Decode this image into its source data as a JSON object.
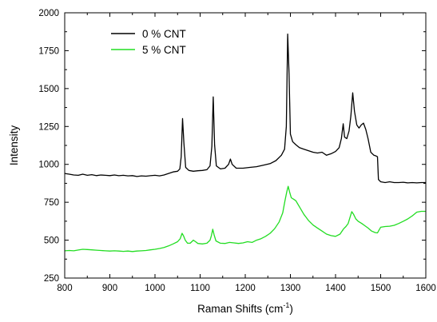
{
  "chart_data": {
    "type": "line",
    "title": "",
    "xlabel": "Raman Shifts (cm",
    "xlabel_sup": "-1",
    "xlabel_tail": ")",
    "ylabel": "Intensity",
    "xlim": [
      800,
      1600
    ],
    "ylim": [
      250,
      2000
    ],
    "x_ticks": [
      800,
      900,
      1000,
      1100,
      1200,
      1300,
      1400,
      1500,
      1600
    ],
    "y_ticks": [
      250,
      500,
      750,
      1000,
      1250,
      1500,
      1750,
      2000
    ],
    "legend_position": "top-left",
    "grid": false,
    "series": [
      {
        "name": "0 % CNT",
        "color": "#000000",
        "points": [
          [
            800,
            940
          ],
          [
            810,
            935
          ],
          [
            820,
            930
          ],
          [
            830,
            928
          ],
          [
            840,
            935
          ],
          [
            850,
            928
          ],
          [
            860,
            932
          ],
          [
            870,
            926
          ],
          [
            880,
            930
          ],
          [
            890,
            928
          ],
          [
            900,
            926
          ],
          [
            910,
            930
          ],
          [
            920,
            925
          ],
          [
            930,
            928
          ],
          [
            940,
            924
          ],
          [
            950,
            926
          ],
          [
            960,
            920
          ],
          [
            970,
            924
          ],
          [
            980,
            922
          ],
          [
            990,
            925
          ],
          [
            1000,
            928
          ],
          [
            1010,
            924
          ],
          [
            1020,
            930
          ],
          [
            1030,
            940
          ],
          [
            1040,
            950
          ],
          [
            1050,
            955
          ],
          [
            1055,
            970
          ],
          [
            1058,
            1050
          ],
          [
            1061,
            1302
          ],
          [
            1064,
            1140
          ],
          [
            1068,
            980
          ],
          [
            1075,
            960
          ],
          [
            1085,
            955
          ],
          [
            1095,
            958
          ],
          [
            1105,
            960
          ],
          [
            1115,
            965
          ],
          [
            1122,
            990
          ],
          [
            1126,
            1120
          ],
          [
            1129,
            1445
          ],
          [
            1132,
            1130
          ],
          [
            1136,
            990
          ],
          [
            1145,
            970
          ],
          [
            1155,
            975
          ],
          [
            1163,
            1000
          ],
          [
            1167,
            1035
          ],
          [
            1171,
            1000
          ],
          [
            1180,
            975
          ],
          [
            1195,
            975
          ],
          [
            1210,
            980
          ],
          [
            1225,
            985
          ],
          [
            1240,
            995
          ],
          [
            1255,
            1005
          ],
          [
            1268,
            1025
          ],
          [
            1280,
            1060
          ],
          [
            1287,
            1100
          ],
          [
            1291,
            1250
          ],
          [
            1294,
            1860
          ],
          [
            1297,
            1600
          ],
          [
            1300,
            1200
          ],
          [
            1305,
            1150
          ],
          [
            1312,
            1130
          ],
          [
            1320,
            1110
          ],
          [
            1330,
            1100
          ],
          [
            1340,
            1090
          ],
          [
            1350,
            1080
          ],
          [
            1360,
            1075
          ],
          [
            1370,
            1080
          ],
          [
            1380,
            1060
          ],
          [
            1390,
            1070
          ],
          [
            1400,
            1085
          ],
          [
            1408,
            1110
          ],
          [
            1413,
            1170
          ],
          [
            1417,
            1268
          ],
          [
            1420,
            1180
          ],
          [
            1425,
            1170
          ],
          [
            1430,
            1220
          ],
          [
            1434,
            1320
          ],
          [
            1438,
            1472
          ],
          [
            1442,
            1350
          ],
          [
            1447,
            1260
          ],
          [
            1452,
            1240
          ],
          [
            1457,
            1260
          ],
          [
            1462,
            1272
          ],
          [
            1467,
            1230
          ],
          [
            1472,
            1170
          ],
          [
            1478,
            1080
          ],
          [
            1485,
            1060
          ],
          [
            1490,
            1055
          ],
          [
            1493,
            1050
          ],
          [
            1495,
            900
          ],
          [
            1500,
            885
          ],
          [
            1510,
            880
          ],
          [
            1520,
            885
          ],
          [
            1530,
            880
          ],
          [
            1540,
            880
          ],
          [
            1550,
            882
          ],
          [
            1560,
            878
          ],
          [
            1570,
            880
          ],
          [
            1580,
            878
          ],
          [
            1590,
            880
          ],
          [
            1600,
            880
          ]
        ]
      },
      {
        "name": "5 % CNT",
        "color": "#22dd22",
        "points": [
          [
            800,
            430
          ],
          [
            810,
            432
          ],
          [
            820,
            430
          ],
          [
            830,
            435
          ],
          [
            840,
            440
          ],
          [
            850,
            438
          ],
          [
            860,
            436
          ],
          [
            870,
            434
          ],
          [
            880,
            432
          ],
          [
            890,
            430
          ],
          [
            900,
            428
          ],
          [
            910,
            430
          ],
          [
            920,
            428
          ],
          [
            930,
            426
          ],
          [
            940,
            428
          ],
          [
            950,
            425
          ],
          [
            960,
            428
          ],
          [
            970,
            430
          ],
          [
            980,
            432
          ],
          [
            990,
            436
          ],
          [
            1000,
            440
          ],
          [
            1010,
            445
          ],
          [
            1020,
            452
          ],
          [
            1030,
            462
          ],
          [
            1040,
            475
          ],
          [
            1050,
            490
          ],
          [
            1056,
            510
          ],
          [
            1060,
            545
          ],
          [
            1063,
            530
          ],
          [
            1067,
            500
          ],
          [
            1072,
            480
          ],
          [
            1078,
            480
          ],
          [
            1085,
            500
          ],
          [
            1090,
            490
          ],
          [
            1095,
            478
          ],
          [
            1105,
            475
          ],
          [
            1115,
            480
          ],
          [
            1122,
            500
          ],
          [
            1125,
            530
          ],
          [
            1128,
            572
          ],
          [
            1131,
            535
          ],
          [
            1135,
            495
          ],
          [
            1145,
            480
          ],
          [
            1155,
            478
          ],
          [
            1165,
            485
          ],
          [
            1175,
            482
          ],
          [
            1185,
            478
          ],
          [
            1195,
            482
          ],
          [
            1205,
            490
          ],
          [
            1215,
            485
          ],
          [
            1225,
            500
          ],
          [
            1235,
            510
          ],
          [
            1245,
            525
          ],
          [
            1255,
            545
          ],
          [
            1265,
            575
          ],
          [
            1275,
            620
          ],
          [
            1283,
            680
          ],
          [
            1288,
            760
          ],
          [
            1292,
            820
          ],
          [
            1295,
            855
          ],
          [
            1298,
            820
          ],
          [
            1302,
            780
          ],
          [
            1307,
            770
          ],
          [
            1312,
            760
          ],
          [
            1320,
            720
          ],
          [
            1330,
            670
          ],
          [
            1340,
            630
          ],
          [
            1350,
            600
          ],
          [
            1360,
            580
          ],
          [
            1370,
            560
          ],
          [
            1380,
            540
          ],
          [
            1390,
            530
          ],
          [
            1400,
            525
          ],
          [
            1410,
            540
          ],
          [
            1418,
            575
          ],
          [
            1423,
            590
          ],
          [
            1428,
            610
          ],
          [
            1432,
            650
          ],
          [
            1436,
            688
          ],
          [
            1440,
            670
          ],
          [
            1445,
            640
          ],
          [
            1450,
            625
          ],
          [
            1458,
            610
          ],
          [
            1465,
            595
          ],
          [
            1472,
            580
          ],
          [
            1480,
            560
          ],
          [
            1488,
            550
          ],
          [
            1493,
            548
          ],
          [
            1497,
            570
          ],
          [
            1500,
            585
          ],
          [
            1510,
            590
          ],
          [
            1520,
            592
          ],
          [
            1530,
            598
          ],
          [
            1540,
            610
          ],
          [
            1550,
            625
          ],
          [
            1560,
            640
          ],
          [
            1570,
            660
          ],
          [
            1580,
            685
          ],
          [
            1590,
            690
          ],
          [
            1600,
            690
          ]
        ]
      }
    ]
  }
}
